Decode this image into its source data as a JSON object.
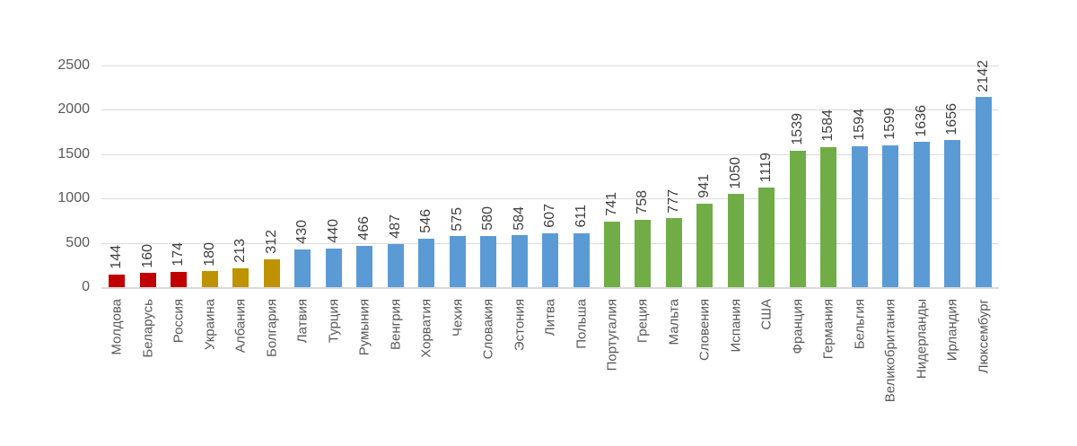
{
  "chart_data": {
    "type": "bar",
    "title": "",
    "xlabel": "",
    "ylabel": "",
    "categories": [
      "Молдова",
      "Беларусь",
      "Россия",
      "Украина",
      "Албания",
      "Болгария",
      "Латвия",
      "Турция",
      "Румыния",
      "Венгрия",
      "Хорватия",
      "Чехия",
      "Словакия",
      "Эстония",
      "Литва",
      "Польша",
      "Португалия",
      "Греция",
      "Мальта",
      "Словения",
      "Испания",
      "США",
      "Франция",
      "Германия",
      "Бельгия",
      "Великобритания",
      "Нидерланды",
      "Ирландия",
      "Люксембург"
    ],
    "values": [
      144,
      160,
      174,
      180,
      213,
      312,
      430,
      440,
      466,
      487,
      546,
      575,
      580,
      584,
      607,
      611,
      741,
      758,
      777,
      941,
      1050,
      1119,
      1539,
      1584,
      1594,
      1599,
      1636,
      1656,
      2142
    ],
    "bar_color_keys": [
      "red",
      "red",
      "red",
      "gold",
      "gold",
      "gold",
      "blue",
      "blue",
      "blue",
      "blue",
      "blue",
      "blue",
      "blue",
      "blue",
      "blue",
      "blue",
      "green",
      "green",
      "green",
      "green",
      "green",
      "green",
      "green",
      "green",
      "blue",
      "blue",
      "blue",
      "blue",
      "blue"
    ],
    "palette": {
      "red": "#C00000",
      "gold": "#BF9200",
      "blue": "#5B9BD5",
      "green": "#70AD47"
    },
    "ylim": [
      0,
      2500
    ],
    "yticks": [
      "0",
      "500",
      "1000",
      "1500",
      "2000",
      "2500"
    ],
    "ytick_values": [
      0,
      500,
      1000,
      1500,
      2000,
      2500
    ],
    "grid": true,
    "legend_position": "none",
    "gridline_color": "#DBDBDB",
    "axis_text_color": "#595959",
    "value_label_color": "#404040",
    "value_labels_rotated": true,
    "category_labels_rotated": true
  }
}
